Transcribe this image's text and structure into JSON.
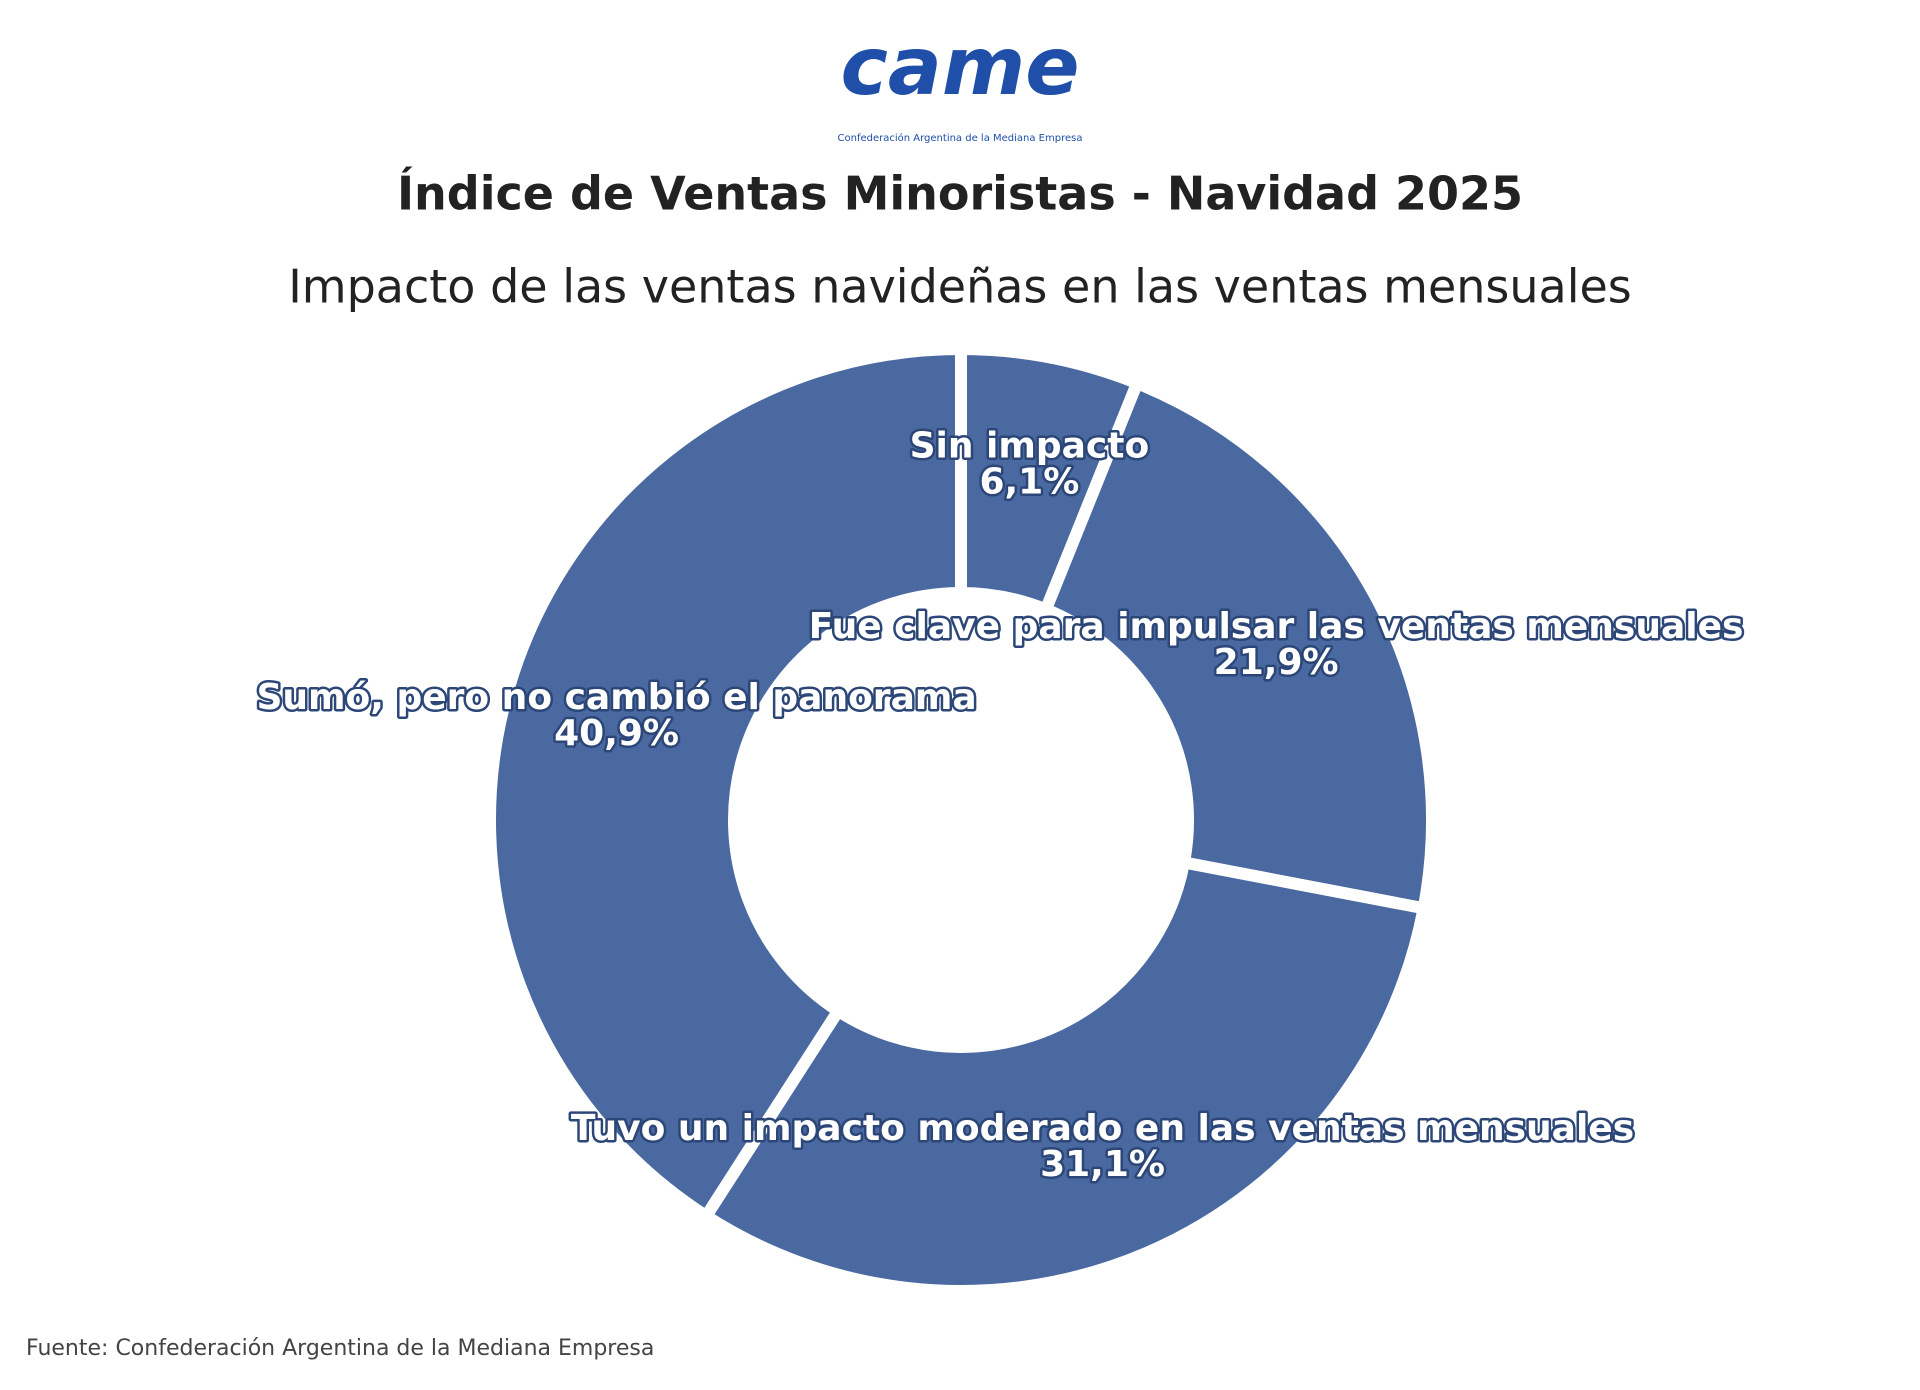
{
  "logo": {
    "text": "came",
    "caption": "Confederación Argentina de la Mediana Empresa"
  },
  "chart_data": {
    "type": "pie",
    "donut": true,
    "title": "Índice de Ventas Minoristas - Navidad 2025",
    "subtitle": "Impacto de las ventas navideñas en las ventas mensuales",
    "categories": [
      "Sin impacto",
      "Fue clave para impulsar las ventas mensuales",
      "Tuvo un impacto moderado en las ventas mensuales",
      "Sumó, pero no cambió el panorama"
    ],
    "values": [
      6.1,
      21.9,
      31.1,
      40.9
    ],
    "value_labels": [
      "6,1%",
      "21,9%",
      "31,1%",
      "40,9%"
    ],
    "color": "#4a69a0",
    "source": "Fuente: Confederación Argentina de la Mediana Empresa"
  }
}
